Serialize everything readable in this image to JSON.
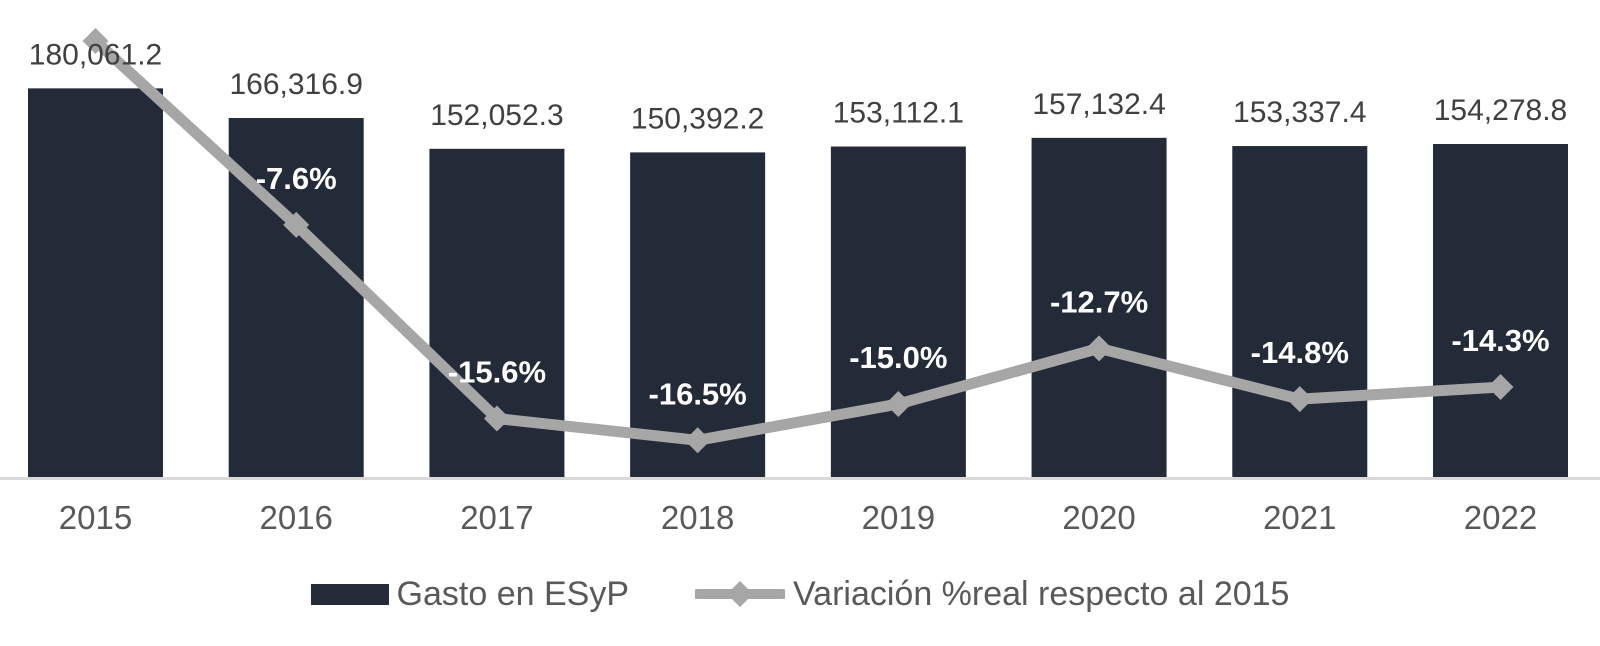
{
  "chart_data": {
    "type": "bar",
    "subtype": "bar-with-line-overlay",
    "title": "",
    "xlabel": "",
    "ylabel": "",
    "grid": false,
    "legend_position": "bottom",
    "categories": [
      "2015",
      "2016",
      "2017",
      "2018",
      "2019",
      "2020",
      "2021",
      "2022"
    ],
    "series": [
      {
        "name": "Gasto en ESyP",
        "type": "bar",
        "values": [
          180061.2,
          166316.9,
          152052.3,
          150392.2,
          153112.1,
          157132.4,
          153337.4,
          154278.8
        ],
        "labels": [
          "180,061.2",
          "166,316.9",
          "152,052.3",
          "150,392.2",
          "153,112.1",
          "157,132.4",
          "153,337.4",
          "154,278.8"
        ]
      },
      {
        "name": "Variación %real respecto al 2015",
        "type": "line",
        "values": [
          0.0,
          -7.6,
          -15.6,
          -16.5,
          -15.0,
          -12.7,
          -14.8,
          -14.3
        ],
        "labels": [
          "",
          "-7.6%",
          "-15.6%",
          "-16.5%",
          "-15.0%",
          "-12.7%",
          "-14.8%",
          "-14.3%"
        ]
      }
    ],
    "ylim": [
      0,
      221000
    ],
    "y2lim_percent": [
      -18,
      1.7
    ]
  },
  "colors": {
    "bar": "#232B38",
    "line": "#A6A6A6",
    "axis_line": "#D9D9D9",
    "value_label": "#404040",
    "category_label": "#595959",
    "pct_label": "#FFFFFF",
    "legend_text": "#595959",
    "background": "#FFFFFF"
  }
}
